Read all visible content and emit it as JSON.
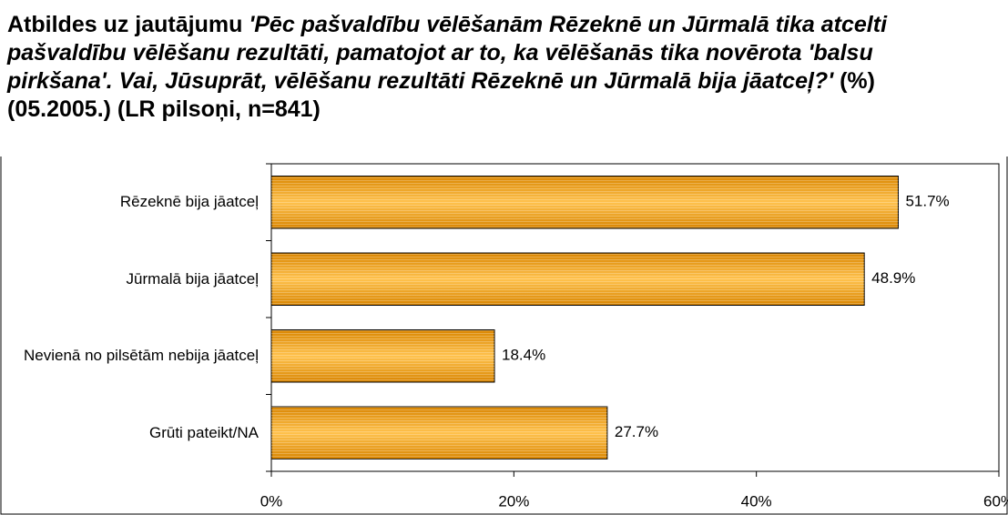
{
  "chart_data": {
    "type": "bar",
    "orientation": "horizontal",
    "title": [
      "Atbildes uz jautājumu",
      "'Pēc pašvaldību vēlēšanām Rēzeknē un Jūrmalā tika atcelti pašvaldību vēlēšanu rezultāti, pamatojot ar to, ka vēlēšanās tika novērota 'balsu pirkšana'. Vai, Jūsuprāt, vēlēšanu rezultāti Rēzeknē un Jūrmalā bija jāatceļ?'",
      "(%) (05.2005.) (LR pilsoņi, n=841)"
    ],
    "categories": [
      "Rēzeknē bija jāatceļ",
      "Jūrmalā bija jāatceļ",
      "Nevienā no pilsētām nebija jāatceļ",
      "Grūti pateikt/NA"
    ],
    "values": [
      51.7,
      48.9,
      18.4,
      27.7
    ],
    "value_labels": [
      "51.7%",
      "48.9%",
      "18.4%",
      "27.7%"
    ],
    "color": "#f0a020",
    "xlim": [
      0,
      60
    ],
    "xticks": [
      {
        "value": 0,
        "label": "0%"
      },
      {
        "value": 20,
        "label": "20%"
      },
      {
        "value": 40,
        "label": "40%"
      },
      {
        "value": 60,
        "label": "60%"
      }
    ],
    "grid": false
  }
}
